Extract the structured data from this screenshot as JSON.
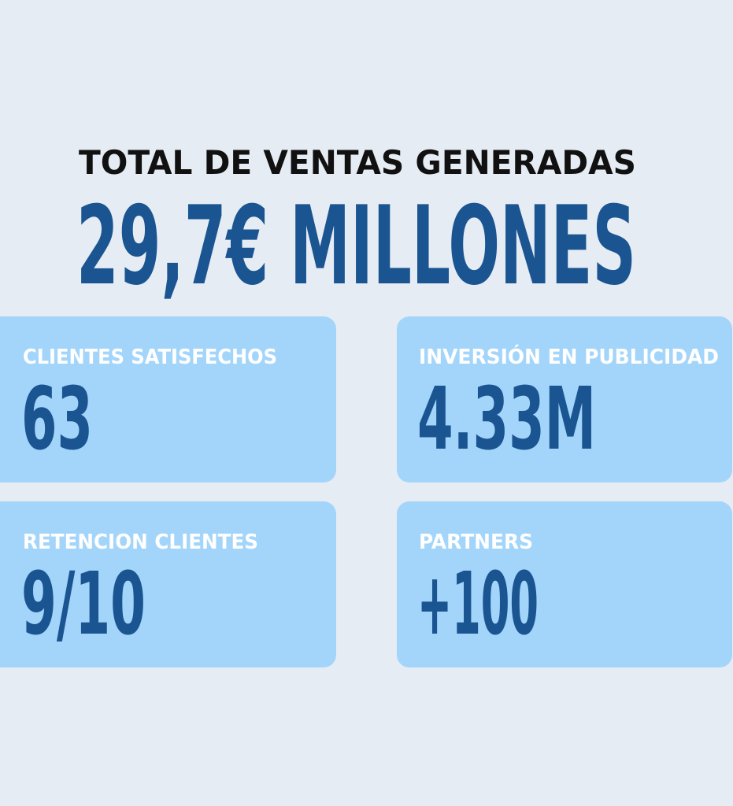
{
  "header": {
    "title": "TOTAL DE VENTAS GENERADAS",
    "value": "29,7€ MILLONES"
  },
  "cards": [
    {
      "label": "CLIENTES SATISFECHOS",
      "value": "63"
    },
    {
      "label": "INVERSIÓN EN PUBLICIDAD",
      "value": "4.33M"
    },
    {
      "label": "RETENCION CLIENTES",
      "value": "9/10"
    },
    {
      "label": "PARTNERS",
      "value": "+100"
    }
  ]
}
